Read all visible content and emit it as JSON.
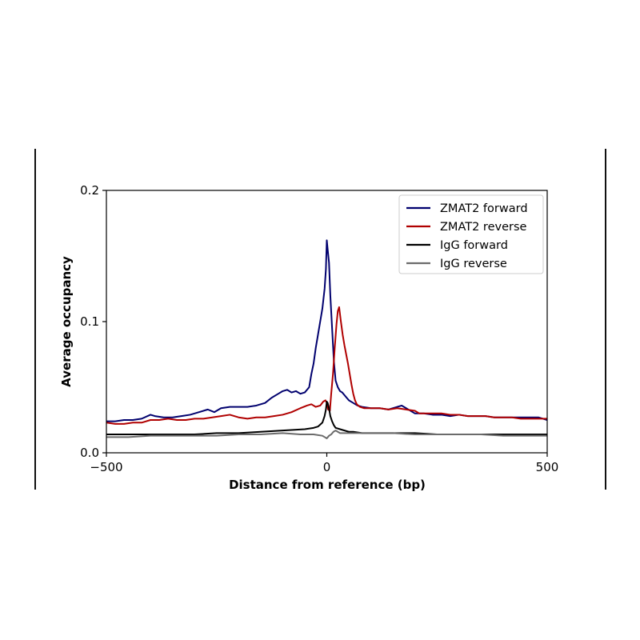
{
  "chart_data": {
    "type": "line",
    "title": "",
    "xlabel": "Distance from reference (bp)",
    "ylabel": "Average occupancy",
    "xlim": [
      -500,
      500
    ],
    "ylim": [
      0,
      0.2
    ],
    "xticks": [
      -500,
      0,
      500
    ],
    "xtick_labels": [
      "−500",
      "0",
      "500"
    ],
    "yticks": [
      0,
      0.1,
      0.2
    ],
    "ytick_labels": [
      "0.0",
      "0.1",
      "0.2"
    ],
    "grid": false,
    "legend_position": "top-right",
    "series": [
      {
        "name": "ZMAT2 forward",
        "color": "#00006e",
        "points": [
          [
            -500,
            0.024
          ],
          [
            -480,
            0.024
          ],
          [
            -460,
            0.025
          ],
          [
            -440,
            0.025
          ],
          [
            -420,
            0.026
          ],
          [
            -400,
            0.029
          ],
          [
            -390,
            0.028
          ],
          [
            -370,
            0.027
          ],
          [
            -350,
            0.027
          ],
          [
            -330,
            0.028
          ],
          [
            -310,
            0.029
          ],
          [
            -290,
            0.031
          ],
          [
            -270,
            0.033
          ],
          [
            -255,
            0.031
          ],
          [
            -240,
            0.034
          ],
          [
            -220,
            0.035
          ],
          [
            -200,
            0.035
          ],
          [
            -180,
            0.035
          ],
          [
            -160,
            0.036
          ],
          [
            -140,
            0.038
          ],
          [
            -125,
            0.042
          ],
          [
            -110,
            0.045
          ],
          [
            -100,
            0.047
          ],
          [
            -90,
            0.048
          ],
          [
            -80,
            0.046
          ],
          [
            -70,
            0.047
          ],
          [
            -60,
            0.045
          ],
          [
            -50,
            0.046
          ],
          [
            -40,
            0.05
          ],
          [
            -35,
            0.06
          ],
          [
            -30,
            0.068
          ],
          [
            -25,
            0.08
          ],
          [
            -20,
            0.09
          ],
          [
            -15,
            0.1
          ],
          [
            -10,
            0.11
          ],
          [
            -5,
            0.125
          ],
          [
            -2,
            0.14
          ],
          [
            0,
            0.162
          ],
          [
            2,
            0.155
          ],
          [
            5,
            0.145
          ],
          [
            8,
            0.12
          ],
          [
            12,
            0.095
          ],
          [
            16,
            0.07
          ],
          [
            20,
            0.055
          ],
          [
            25,
            0.05
          ],
          [
            30,
            0.047
          ],
          [
            35,
            0.046
          ],
          [
            40,
            0.044
          ],
          [
            45,
            0.042
          ],
          [
            50,
            0.04
          ],
          [
            60,
            0.038
          ],
          [
            70,
            0.036
          ],
          [
            80,
            0.035
          ],
          [
            100,
            0.034
          ],
          [
            120,
            0.034
          ],
          [
            140,
            0.033
          ],
          [
            160,
            0.035
          ],
          [
            170,
            0.036
          ],
          [
            180,
            0.034
          ],
          [
            200,
            0.03
          ],
          [
            220,
            0.03
          ],
          [
            240,
            0.029
          ],
          [
            260,
            0.029
          ],
          [
            280,
            0.028
          ],
          [
            300,
            0.029
          ],
          [
            320,
            0.028
          ],
          [
            340,
            0.028
          ],
          [
            360,
            0.028
          ],
          [
            380,
            0.027
          ],
          [
            400,
            0.027
          ],
          [
            420,
            0.027
          ],
          [
            440,
            0.027
          ],
          [
            460,
            0.027
          ],
          [
            480,
            0.027
          ],
          [
            500,
            0.025
          ]
        ]
      },
      {
        "name": "ZMAT2 reverse",
        "color": "#b00000",
        "points": [
          [
            -500,
            0.023
          ],
          [
            -480,
            0.022
          ],
          [
            -460,
            0.022
          ],
          [
            -440,
            0.023
          ],
          [
            -420,
            0.023
          ],
          [
            -400,
            0.025
          ],
          [
            -380,
            0.025
          ],
          [
            -360,
            0.026
          ],
          [
            -340,
            0.025
          ],
          [
            -320,
            0.025
          ],
          [
            -300,
            0.026
          ],
          [
            -280,
            0.026
          ],
          [
            -260,
            0.027
          ],
          [
            -240,
            0.028
          ],
          [
            -220,
            0.029
          ],
          [
            -210,
            0.028
          ],
          [
            -200,
            0.027
          ],
          [
            -180,
            0.026
          ],
          [
            -160,
            0.027
          ],
          [
            -140,
            0.027
          ],
          [
            -120,
            0.028
          ],
          [
            -100,
            0.029
          ],
          [
            -80,
            0.031
          ],
          [
            -60,
            0.034
          ],
          [
            -45,
            0.036
          ],
          [
            -35,
            0.037
          ],
          [
            -25,
            0.035
          ],
          [
            -15,
            0.036
          ],
          [
            -8,
            0.039
          ],
          [
            -3,
            0.04
          ],
          [
            0,
            0.038
          ],
          [
            3,
            0.033
          ],
          [
            7,
            0.032
          ],
          [
            10,
            0.045
          ],
          [
            14,
            0.06
          ],
          [
            18,
            0.08
          ],
          [
            22,
            0.098
          ],
          [
            25,
            0.108
          ],
          [
            28,
            0.111
          ],
          [
            32,
            0.1
          ],
          [
            36,
            0.09
          ],
          [
            40,
            0.082
          ],
          [
            44,
            0.075
          ],
          [
            48,
            0.068
          ],
          [
            52,
            0.06
          ],
          [
            56,
            0.052
          ],
          [
            60,
            0.045
          ],
          [
            64,
            0.04
          ],
          [
            68,
            0.037
          ],
          [
            75,
            0.035
          ],
          [
            85,
            0.034
          ],
          [
            100,
            0.034
          ],
          [
            120,
            0.034
          ],
          [
            140,
            0.033
          ],
          [
            160,
            0.034
          ],
          [
            180,
            0.033
          ],
          [
            200,
            0.032
          ],
          [
            210,
            0.03
          ],
          [
            220,
            0.03
          ],
          [
            240,
            0.03
          ],
          [
            260,
            0.03
          ],
          [
            280,
            0.029
          ],
          [
            300,
            0.029
          ],
          [
            320,
            0.028
          ],
          [
            340,
            0.028
          ],
          [
            360,
            0.028
          ],
          [
            380,
            0.027
          ],
          [
            400,
            0.027
          ],
          [
            420,
            0.027
          ],
          [
            440,
            0.026
          ],
          [
            460,
            0.026
          ],
          [
            480,
            0.026
          ],
          [
            500,
            0.026
          ]
        ]
      },
      {
        "name": "IgG forward",
        "color": "#000000",
        "points": [
          [
            -500,
            0.014
          ],
          [
            -450,
            0.014
          ],
          [
            -400,
            0.014
          ],
          [
            -350,
            0.014
          ],
          [
            -300,
            0.014
          ],
          [
            -250,
            0.015
          ],
          [
            -200,
            0.015
          ],
          [
            -150,
            0.016
          ],
          [
            -100,
            0.017
          ],
          [
            -50,
            0.018
          ],
          [
            -30,
            0.019
          ],
          [
            -20,
            0.02
          ],
          [
            -10,
            0.023
          ],
          [
            -5,
            0.028
          ],
          [
            -2,
            0.033
          ],
          [
            0,
            0.039
          ],
          [
            2,
            0.038
          ],
          [
            5,
            0.034
          ],
          [
            8,
            0.028
          ],
          [
            12,
            0.024
          ],
          [
            16,
            0.021
          ],
          [
            20,
            0.019
          ],
          [
            30,
            0.018
          ],
          [
            40,
            0.017
          ],
          [
            50,
            0.016
          ],
          [
            60,
            0.016
          ],
          [
            80,
            0.015
          ],
          [
            100,
            0.015
          ],
          [
            150,
            0.015
          ],
          [
            200,
            0.015
          ],
          [
            250,
            0.014
          ],
          [
            300,
            0.014
          ],
          [
            350,
            0.014
          ],
          [
            400,
            0.014
          ],
          [
            450,
            0.014
          ],
          [
            500,
            0.014
          ]
        ]
      },
      {
        "name": "IgG reverse",
        "color": "#6b6b6b",
        "points": [
          [
            -500,
            0.012
          ],
          [
            -450,
            0.012
          ],
          [
            -400,
            0.013
          ],
          [
            -350,
            0.013
          ],
          [
            -300,
            0.013
          ],
          [
            -250,
            0.013
          ],
          [
            -200,
            0.014
          ],
          [
            -150,
            0.014
          ],
          [
            -100,
            0.015
          ],
          [
            -60,
            0.014
          ],
          [
            -30,
            0.014
          ],
          [
            -10,
            0.013
          ],
          [
            -5,
            0.012
          ],
          [
            0,
            0.011
          ],
          [
            5,
            0.013
          ],
          [
            10,
            0.014
          ],
          [
            15,
            0.016
          ],
          [
            20,
            0.017
          ],
          [
            25,
            0.016
          ],
          [
            30,
            0.015
          ],
          [
            50,
            0.015
          ],
          [
            100,
            0.015
          ],
          [
            150,
            0.015
          ],
          [
            200,
            0.014
          ],
          [
            250,
            0.014
          ],
          [
            300,
            0.014
          ],
          [
            350,
            0.014
          ],
          [
            400,
            0.013
          ],
          [
            450,
            0.013
          ],
          [
            500,
            0.013
          ]
        ]
      }
    ]
  }
}
